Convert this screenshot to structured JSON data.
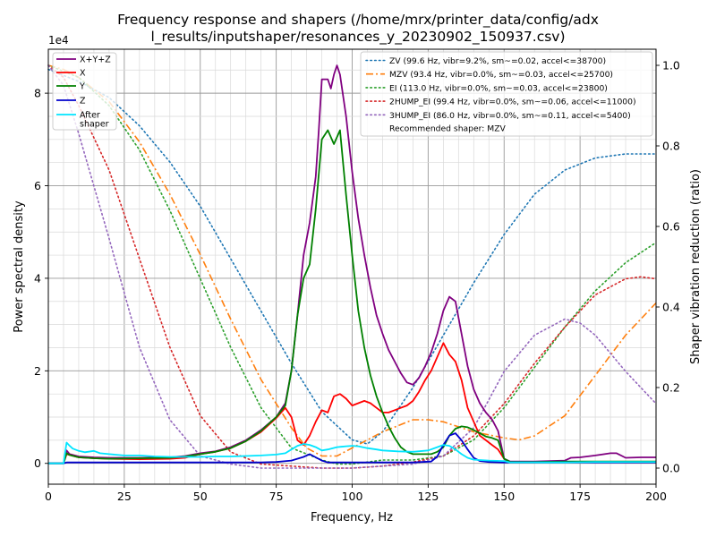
{
  "chart_data": {
    "type": "line",
    "title_line1": "Frequency response and shapers (/home/mrx/printer_data/config/adx",
    "title_line2": "l_results/inputshaper/resonances_y_20230902_150937.csv)",
    "xlabel": "Frequency, Hz",
    "ylabel": "Power spectral density",
    "y2label": "Shaper vibration reduction (ratio)",
    "y_scale_label": "1e4",
    "xlim": [
      0,
      200
    ],
    "ylim": [
      -0.45,
      8.95
    ],
    "y2lim": [
      -0.04,
      1.04
    ],
    "xticks": [
      0,
      25,
      50,
      75,
      100,
      125,
      150,
      175,
      200
    ],
    "yticks": [
      0,
      2,
      4,
      6,
      8
    ],
    "y2ticks": [
      0.0,
      0.2,
      0.4,
      0.6,
      0.8,
      1.0
    ],
    "grid": true,
    "legend_left_position": "top-left",
    "legend_right_position": "top-right",
    "psd_series": [
      {
        "name": "X+Y+Z",
        "color": "#800080",
        "x": [
          0,
          5,
          6,
          7,
          10,
          15,
          20,
          30,
          40,
          45,
          50,
          55,
          60,
          65,
          70,
          75,
          78,
          80,
          82,
          84,
          86,
          88,
          89,
          90,
          91,
          92,
          93,
          94,
          95,
          96,
          98,
          100,
          102,
          104,
          106,
          108,
          110,
          112,
          114,
          116,
          118,
          120,
          122,
          124,
          126,
          128,
          130,
          132,
          134,
          136,
          138,
          140,
          142,
          144,
          146,
          148,
          150,
          152,
          160,
          170,
          172,
          175,
          180,
          185,
          187,
          190,
          195,
          200
        ],
        "y": [
          0,
          0,
          0.28,
          0.2,
          0.15,
          0.13,
          0.12,
          0.12,
          0.13,
          0.16,
          0.22,
          0.26,
          0.35,
          0.5,
          0.72,
          1.0,
          1.3,
          2.0,
          3.2,
          4.5,
          5.2,
          6.2,
          7.2,
          8.3,
          8.3,
          8.3,
          8.1,
          8.4,
          8.6,
          8.4,
          7.5,
          6.3,
          5.3,
          4.5,
          3.8,
          3.2,
          2.8,
          2.45,
          2.2,
          1.95,
          1.75,
          1.7,
          1.85,
          2.1,
          2.4,
          2.8,
          3.3,
          3.6,
          3.5,
          2.8,
          2.1,
          1.6,
          1.3,
          1.1,
          0.95,
          0.7,
          0.1,
          0.04,
          0.04,
          0.06,
          0.12,
          0.13,
          0.17,
          0.22,
          0.22,
          0.12,
          0.13,
          0.13
        ]
      },
      {
        "name": "X",
        "color": "#ff0000",
        "x": [
          0,
          5,
          6,
          7,
          10,
          15,
          20,
          30,
          40,
          45,
          50,
          55,
          60,
          65,
          70,
          75,
          78,
          80,
          82,
          84,
          86,
          88,
          90,
          92,
          94,
          96,
          98,
          100,
          102,
          104,
          106,
          108,
          110,
          112,
          114,
          116,
          118,
          120,
          122,
          124,
          126,
          128,
          130,
          132,
          134,
          136,
          138,
          140,
          142,
          144,
          146,
          148,
          150,
          152,
          160,
          170,
          180,
          190,
          200
        ],
        "y": [
          0,
          0,
          0.2,
          0.18,
          0.13,
          0.11,
          0.1,
          0.09,
          0.1,
          0.12,
          0.2,
          0.25,
          0.33,
          0.48,
          0.68,
          0.98,
          1.2,
          1.0,
          0.5,
          0.4,
          0.6,
          0.9,
          1.15,
          1.1,
          1.45,
          1.5,
          1.4,
          1.25,
          1.3,
          1.35,
          1.3,
          1.2,
          1.1,
          1.1,
          1.15,
          1.2,
          1.25,
          1.35,
          1.55,
          1.8,
          2.0,
          2.3,
          2.6,
          2.35,
          2.2,
          1.8,
          1.2,
          0.9,
          0.6,
          0.5,
          0.4,
          0.3,
          0.1,
          0.02,
          0.02,
          0.03,
          0.03,
          0.02,
          0.02
        ]
      },
      {
        "name": "Y",
        "color": "#008000",
        "x": [
          0,
          5,
          6,
          7,
          10,
          15,
          20,
          30,
          40,
          45,
          50,
          55,
          60,
          65,
          70,
          75,
          78,
          80,
          82,
          84,
          86,
          88,
          90,
          92,
          94,
          96,
          98,
          100,
          102,
          104,
          106,
          108,
          110,
          112,
          114,
          116,
          118,
          120,
          122,
          124,
          126,
          128,
          130,
          132,
          134,
          136,
          138,
          140,
          142,
          144,
          146,
          148,
          150,
          152,
          160,
          170,
          180,
          190,
          200
        ],
        "y": [
          0,
          0,
          0.22,
          0.18,
          0.13,
          0.11,
          0.1,
          0.11,
          0.12,
          0.15,
          0.2,
          0.25,
          0.33,
          0.48,
          0.7,
          1.0,
          1.25,
          2.0,
          3.2,
          4.0,
          4.3,
          5.5,
          7.0,
          7.2,
          6.9,
          7.2,
          5.8,
          4.5,
          3.3,
          2.5,
          1.9,
          1.45,
          1.1,
          0.8,
          0.55,
          0.35,
          0.25,
          0.2,
          0.2,
          0.2,
          0.2,
          0.25,
          0.35,
          0.6,
          0.75,
          0.8,
          0.78,
          0.72,
          0.65,
          0.58,
          0.55,
          0.5,
          0.1,
          0.03,
          0.03,
          0.04,
          0.04,
          0.04,
          0.04
        ]
      },
      {
        "name": "Z",
        "color": "#0000cc",
        "x": [
          0,
          5,
          6,
          7,
          10,
          20,
          30,
          40,
          50,
          60,
          70,
          75,
          80,
          84,
          86,
          88,
          90,
          92,
          94,
          96,
          98,
          100,
          110,
          120,
          126,
          128,
          130,
          132,
          134,
          136,
          138,
          140,
          142,
          145,
          150,
          160,
          170,
          180,
          190,
          200
        ],
        "y": [
          0,
          0,
          0.02,
          0.02,
          0.02,
          0.02,
          0.02,
          0.02,
          0.02,
          0.02,
          0.02,
          0.03,
          0.06,
          0.14,
          0.2,
          0.13,
          0.06,
          0.02,
          0.02,
          0.02,
          0.02,
          0.02,
          0.02,
          0.02,
          0.04,
          0.15,
          0.4,
          0.6,
          0.65,
          0.5,
          0.3,
          0.12,
          0.05,
          0.03,
          0.02,
          0.02,
          0.02,
          0.02,
          0.02,
          0.02
        ]
      },
      {
        "name": "After\nshaper",
        "color": "#00e5ff",
        "x": [
          0,
          5,
          6,
          7,
          8,
          10,
          12,
          15,
          17,
          20,
          25,
          30,
          35,
          40,
          45,
          50,
          55,
          60,
          65,
          70,
          75,
          78,
          80,
          82,
          84,
          86,
          88,
          90,
          92,
          95,
          98,
          100,
          102,
          105,
          108,
          110,
          115,
          120,
          125,
          128,
          130,
          132,
          134,
          136,
          138,
          140,
          145,
          150,
          152,
          160,
          170,
          180,
          190,
          200
        ],
        "y": [
          0,
          0,
          0.45,
          0.38,
          0.32,
          0.27,
          0.24,
          0.27,
          0.22,
          0.2,
          0.17,
          0.17,
          0.15,
          0.14,
          0.14,
          0.14,
          0.15,
          0.15,
          0.16,
          0.17,
          0.19,
          0.22,
          0.3,
          0.38,
          0.42,
          0.4,
          0.35,
          0.28,
          0.3,
          0.35,
          0.37,
          0.38,
          0.37,
          0.33,
          0.3,
          0.28,
          0.26,
          0.25,
          0.28,
          0.35,
          0.4,
          0.38,
          0.3,
          0.2,
          0.12,
          0.08,
          0.06,
          0.05,
          0.02,
          0.02,
          0.02,
          0.03,
          0.03,
          0.03
        ]
      }
    ],
    "shaper_series": [
      {
        "name": "ZV (99.6 Hz, vibr=9.2%, sm~=0.02, accel<=38700)",
        "color": "#1f77b4",
        "x": [
          0,
          10,
          20,
          30,
          40,
          50,
          60,
          70,
          80,
          90,
          100,
          105,
          110,
          120,
          130,
          140,
          150,
          160,
          170,
          180,
          190,
          200
        ],
        "y": [
          0.99,
          0.96,
          0.92,
          0.85,
          0.76,
          0.65,
          0.52,
          0.39,
          0.26,
          0.14,
          0.07,
          0.06,
          0.09,
          0.2,
          0.33,
          0.46,
          0.58,
          0.68,
          0.74,
          0.77,
          0.78,
          0.78
        ]
      },
      {
        "name": "MZV (93.4 Hz, vibr=0.0%, sm~=0.03, accel<=25700)",
        "color": "#ff7f0e",
        "x": [
          0,
          5,
          10,
          20,
          30,
          40,
          50,
          60,
          70,
          80,
          85,
          90,
          95,
          100,
          110,
          120,
          125,
          130,
          140,
          150,
          155,
          160,
          170,
          180,
          190,
          200
        ],
        "y": [
          1.0,
          0.99,
          0.97,
          0.91,
          0.81,
          0.68,
          0.53,
          0.37,
          0.22,
          0.1,
          0.05,
          0.03,
          0.03,
          0.05,
          0.09,
          0.12,
          0.12,
          0.115,
          0.09,
          0.075,
          0.07,
          0.08,
          0.13,
          0.23,
          0.33,
          0.41
        ]
      },
      {
        "name": "EI (113.0 Hz, vibr=0.0%, sm~=0.03, accel<=23800)",
        "color": "#2ca02c",
        "x": [
          0,
          10,
          20,
          30,
          40,
          50,
          60,
          70,
          80,
          90,
          95,
          100,
          110,
          120,
          130,
          140,
          150,
          160,
          170,
          180,
          190,
          200
        ],
        "y": [
          1.0,
          0.97,
          0.9,
          0.79,
          0.64,
          0.47,
          0.3,
          0.15,
          0.05,
          0.02,
          0.01,
          0.01,
          0.02,
          0.02,
          0.03,
          0.07,
          0.15,
          0.25,
          0.35,
          0.44,
          0.51,
          0.56
        ]
      },
      {
        "name": "2HUMP_EI (99.4 Hz, vibr=0.0%, sm~=0.06, accel<=11000)",
        "color": "#d62728",
        "x": [
          0,
          5,
          10,
          20,
          30,
          40,
          50,
          60,
          70,
          80,
          90,
          95,
          100,
          110,
          120,
          130,
          140,
          150,
          160,
          170,
          180,
          190,
          195,
          200
        ],
        "y": [
          1.0,
          0.97,
          0.9,
          0.74,
          0.52,
          0.3,
          0.13,
          0.04,
          0.01,
          0.005,
          0.0,
          0.0,
          0.0,
          0.005,
          0.015,
          0.03,
          0.08,
          0.16,
          0.26,
          0.35,
          0.43,
          0.47,
          0.475,
          0.47
        ]
      },
      {
        "name": "3HUMP_EI (86.0 Hz, vibr=0.0%, sm~=0.11, accel<=5400)",
        "color": "#9467bd",
        "x": [
          0,
          5,
          10,
          20,
          30,
          40,
          50,
          60,
          70,
          80,
          90,
          100,
          110,
          120,
          130,
          140,
          150,
          160,
          170,
          175,
          180,
          190,
          200
        ],
        "y": [
          1.0,
          0.95,
          0.83,
          0.57,
          0.3,
          0.12,
          0.03,
          0.01,
          0.0,
          0.0,
          0.0,
          0.0,
          0.005,
          0.01,
          0.03,
          0.1,
          0.24,
          0.33,
          0.37,
          0.36,
          0.33,
          0.24,
          0.16
        ]
      }
    ],
    "recommended_text": "Recommended shaper: MZV"
  }
}
